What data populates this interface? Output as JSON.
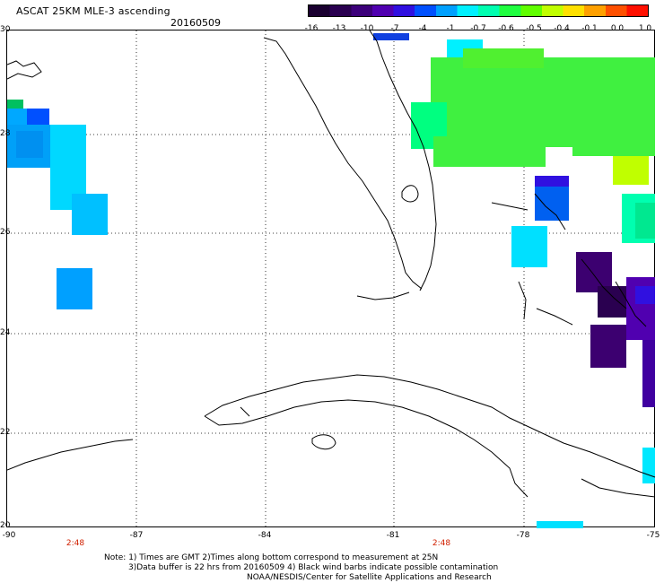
{
  "header": {
    "title": "ASCAT 25KM MLE-3 ascending",
    "date": "20160509"
  },
  "colorbar": {
    "labels": [
      "-16",
      "-13",
      "-10",
      "-7",
      "-4",
      "-1",
      "-0.7",
      "-0.6",
      "-0.5",
      "-0.4",
      "-0.1",
      "0.0",
      "1.0"
    ],
    "colors": [
      "#1a0030",
      "#2a0050",
      "#3c007a",
      "#5000b0",
      "#3010e0",
      "#0050ff",
      "#00a0ff",
      "#00f0ff",
      "#00ffb0",
      "#20ff40",
      "#60ff00",
      "#c0ff00",
      "#ffe000",
      "#ffa000",
      "#ff5000",
      "#ff1000"
    ]
  },
  "map": {
    "lat_labels": [
      "30",
      "28",
      "26",
      "24",
      "22",
      "20"
    ],
    "lon_labels": [
      "-90",
      "-87",
      "-84",
      "-81",
      "-78",
      "-75"
    ],
    "time_labels": [
      "2:48",
      "2:48"
    ]
  },
  "footer": {
    "line1": "Note: 1) Times are GMT 2)Times along bottom correspond to measurement at 25N",
    "line2": "3)Data buffer is 22 hrs from 20160509 4) Black wind barbs indicate possible contamination",
    "line3": "NOAA/NESDIS/Center for Satellite Applications and Research"
  }
}
